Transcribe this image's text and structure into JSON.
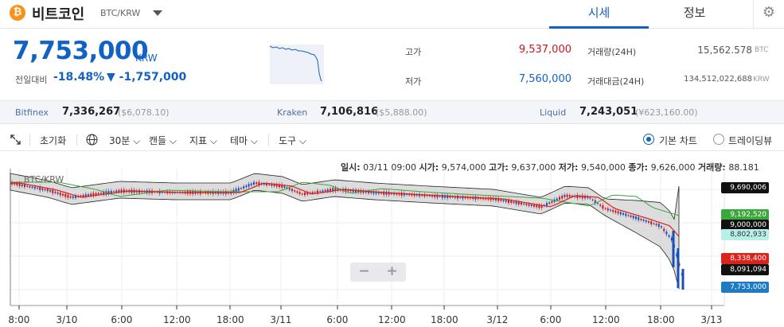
{
  "header": {
    "coin_symbol": "₿",
    "coin_name": "비트코인",
    "pair": "BTC/KRW",
    "tabs": [
      {
        "label": "시세",
        "active": true
      },
      {
        "label": "정보",
        "active": false
      }
    ],
    "settings_icon": "⚙"
  },
  "price": {
    "current": "7,753,000",
    "unit": "KRW",
    "change_label": "전일대비",
    "change_pct": "-18.48%",
    "change_amt": "▼ -1,757,000"
  },
  "stats": {
    "high_label": "고가",
    "high": "9,537,000",
    "low_label": "저가",
    "low": "7,560,000",
    "volume_label": "거래량(24H)",
    "volume": "15,562.578",
    "volume_unit": "BTC",
    "amount_label": "거래대금(24H)",
    "amount": "134,512,022,688",
    "amount_unit": "KRW"
  },
  "exchanges": [
    {
      "name": "Bitfinex",
      "price": "7,336,267",
      "sub": "($6,078.10)"
    },
    {
      "name": "Kraken",
      "price": "7,106,816",
      "sub": "($5,888.00)"
    },
    {
      "name": "Liquid",
      "price": "7,243,051",
      "sub": "(¥623,160.00)"
    }
  ],
  "toolbar": {
    "reset": "초기화",
    "interval": "30분",
    "candle": "캔들",
    "indicator": "지표",
    "theme": "테마",
    "tools": "도구",
    "basic_chart": "기본 차트",
    "tradingview": "트레이딩뷰"
  },
  "ohlc": {
    "time_label": "일시:",
    "time": "03/11 09:00",
    "open_label": "시가:",
    "open": "9,574,000",
    "high_label": "고가:",
    "high": "9,637,000",
    "low_label": "저가:",
    "low": "9,540,000",
    "close_label": "종가:",
    "close": "9,626,000",
    "vol_label": "거래량:",
    "vol": "88.181"
  },
  "chart": {
    "pair_tag": "BTC/KRW",
    "zoom_out": "−",
    "zoom_in": "+",
    "x_labels": [
      "8:00",
      "3/10",
      "6:00",
      "12:00",
      "18:00",
      "3/11",
      "6:00",
      "12:00",
      "18:00",
      "3/12",
      "6:00",
      "12:00",
      "18:00",
      "3/13"
    ],
    "price_tags": [
      {
        "value": "9,690,006",
        "color": "#111111"
      },
      {
        "value": "9,192,520",
        "color": "#3aa83a"
      },
      {
        "value": "9,000,000",
        "color": "#111111"
      },
      {
        "value": "8,802,933",
        "color": "#b6f0e8"
      },
      {
        "value": "8,338,400",
        "color": "#d9231d"
      },
      {
        "value": "8,091,094",
        "color": "#111111"
      },
      {
        "value": "7,753,000",
        "color": "#1e7bc2"
      }
    ]
  },
  "chart_data": {
    "type": "candlestick",
    "title": "BTC/KRW",
    "x_labels": [
      "8:00",
      "3/10",
      "6:00",
      "12:00",
      "18:00",
      "3/11",
      "6:00",
      "12:00",
      "18:00",
      "3/12",
      "6:00",
      "12:00",
      "18:00",
      "3/13"
    ],
    "visible_price_labels": [
      9690006,
      9192520,
      9000000,
      8802933,
      8338400,
      8091094,
      7753000
    ],
    "last_price": 7753000,
    "hovered_candle": {
      "time": "03/11 09:00",
      "open": 9574000,
      "high": 9637000,
      "low": 9540000,
      "close": 9626000,
      "volume": 88.181
    }
  }
}
